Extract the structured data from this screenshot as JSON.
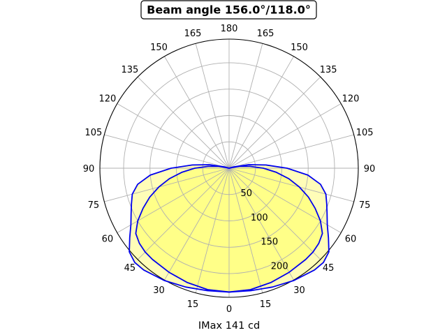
{
  "chart_data": {
    "type": "polar",
    "title": "Beam angle 156.0°/118.0°",
    "xlabel": "IMax 141 cd",
    "angle_tick_labels": [
      "0",
      "15",
      "30",
      "45",
      "60",
      "75",
      "90",
      "105",
      "120",
      "135",
      "150",
      "165",
      "180",
      "165",
      "150",
      "135",
      "120",
      "105",
      "90",
      "75",
      "60",
      "45",
      "30",
      "15"
    ],
    "radial_ticks": [
      50,
      100,
      150,
      200
    ],
    "rmax": 245,
    "grid": true,
    "series": [
      {
        "fill": "#fffdb8",
        "stroke": "#0000ee",
        "points": [
          [
            0,
            235
          ],
          [
            10,
            236
          ],
          [
            20,
            240
          ],
          [
            30,
            246
          ],
          [
            40,
            252
          ],
          [
            45,
            253
          ],
          [
            50,
            247
          ],
          [
            55,
            230
          ],
          [
            60,
            215
          ],
          [
            65,
            205
          ],
          [
            70,
            197
          ],
          [
            75,
            190
          ],
          [
            80,
            176
          ],
          [
            85,
            150
          ],
          [
            90,
            110
          ],
          [
            95,
            70
          ],
          [
            100,
            38
          ],
          [
            105,
            10
          ],
          [
            110,
            0
          ]
        ]
      },
      {
        "fill": "#ffff88",
        "stroke": "#0000ee",
        "points": [
          [
            0,
            235
          ],
          [
            10,
            234
          ],
          [
            20,
            231
          ],
          [
            30,
            228
          ],
          [
            40,
            226
          ],
          [
            45,
            225
          ],
          [
            50,
            222
          ],
          [
            55,
            216
          ],
          [
            60,
            200
          ],
          [
            65,
            180
          ],
          [
            70,
            160
          ],
          [
            75,
            138
          ],
          [
            80,
            115
          ],
          [
            85,
            90
          ],
          [
            90,
            65
          ],
          [
            95,
            40
          ],
          [
            100,
            20
          ],
          [
            105,
            4
          ],
          [
            108,
            0
          ]
        ]
      }
    ]
  }
}
